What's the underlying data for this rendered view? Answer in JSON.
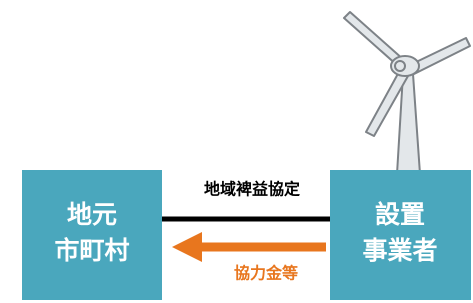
{
  "nodes": [
    {
      "lines": [
        "地元",
        "市町村"
      ]
    },
    {
      "lines": [
        "設置",
        "事業者"
      ]
    }
  ],
  "edges": [
    {
      "label": "地域裨益協定"
    },
    {
      "label": "協力金等"
    }
  ]
}
